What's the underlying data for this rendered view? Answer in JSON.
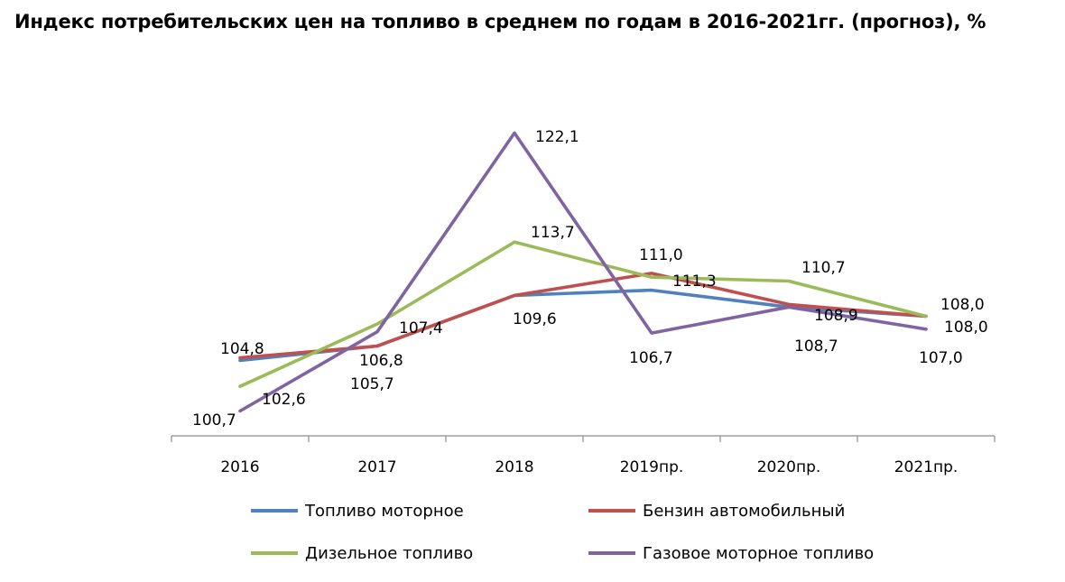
{
  "chart_data": {
    "type": "line",
    "title": "Индекс потребительских цен на топливо в среднем по годам в 2016-2021гг. (прогноз), %",
    "categories": [
      "2016",
      "2017",
      "2018",
      "2019пр.",
      "2020пр.",
      "2021пр."
    ],
    "ylim": [
      99,
      124
    ],
    "grid": false,
    "legend_position": "bottom",
    "series": [
      {
        "name": "Топливо моторное",
        "color": "#4f81bd",
        "values": [
          104.6,
          105.7,
          109.6,
          110.0,
          108.7,
          108.0
        ]
      },
      {
        "name": "Бензин автомобильный",
        "color": "#c0504d",
        "values": [
          104.8,
          105.7,
          109.6,
          111.3,
          108.9,
          108.0
        ]
      },
      {
        "name": "Дизельное топливо",
        "color": "#9bbb59",
        "values": [
          102.6,
          107.4,
          113.7,
          111.0,
          110.7,
          108.0
        ]
      },
      {
        "name": "Газовое моторное топливо",
        "color": "#8064a2",
        "values": [
          100.7,
          106.8,
          122.1,
          106.7,
          108.7,
          107.0
        ]
      }
    ],
    "data_labels": [
      "104,8",
      "102,6",
      "100,7",
      "107,4",
      "106,8",
      "105,7",
      "122,1",
      "113,7",
      "109,6",
      "111,0",
      "111,3",
      "106,7",
      "110,7",
      "108,9",
      "108,7",
      "108,0",
      "108,0",
      "107,0"
    ]
  }
}
